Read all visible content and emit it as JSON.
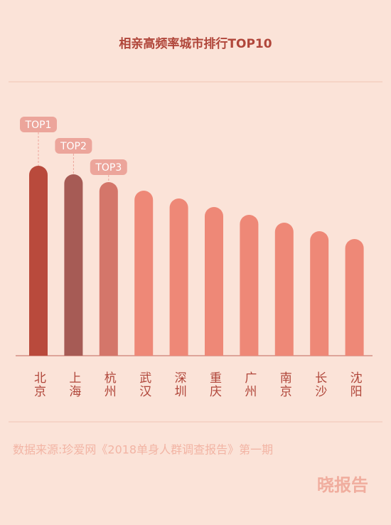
{
  "chart_data": {
    "type": "bar",
    "title": "相亲高频率城市排行TOP10",
    "categories": [
      "北京",
      "上海",
      "杭州",
      "武汉",
      "深圳",
      "重庆",
      "广州",
      "南京",
      "长沙",
      "沈阳"
    ],
    "values": [
      267,
      255,
      244,
      232,
      221,
      209,
      198,
      187,
      175,
      164
    ],
    "colors": [
      "#b94a3c",
      "#a65b55",
      "#d4766a",
      "#ee8877",
      "#ee8877",
      "#ee8877",
      "#ee8877",
      "#ee8877",
      "#ee8877",
      "#ee8877"
    ],
    "badges": [
      "TOP1",
      "TOP2",
      "TOP3"
    ]
  },
  "footer": {
    "source": "数据来源:珍爱网《2018单身人群调查报告》第一期",
    "logo": "晓报告"
  }
}
